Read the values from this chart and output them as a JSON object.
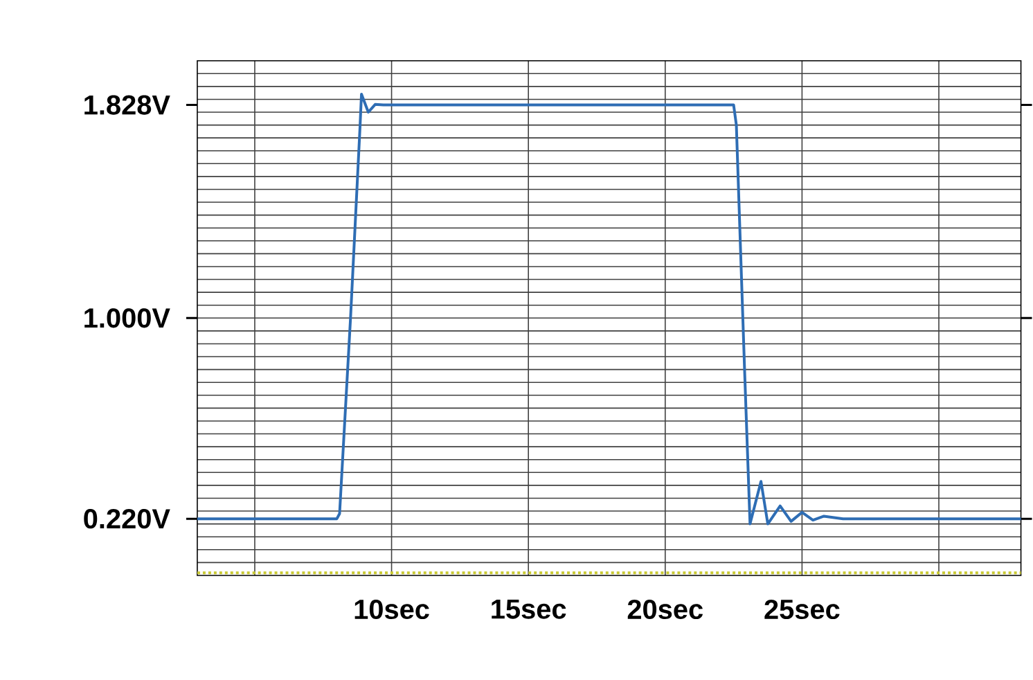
{
  "chart_data": {
    "type": "line",
    "xlim": [
      2.9,
      33
    ],
    "ylim": [
      0,
      2
    ],
    "grid": true,
    "xticks": [
      {
        "value": 5,
        "label": null
      },
      {
        "value": 10,
        "label": "10sec"
      },
      {
        "value": 15,
        "label": "15sec"
      },
      {
        "value": 20,
        "label": "20sec"
      },
      {
        "value": 25,
        "label": "25sec"
      },
      {
        "value": 30,
        "label": null
      }
    ],
    "yticks": [
      {
        "value": 0.05,
        "label": null
      },
      {
        "value": 0.1,
        "label": null
      },
      {
        "value": 0.15,
        "label": null
      },
      {
        "value": 0.2,
        "label": null
      },
      {
        "value": 0.25,
        "label": null
      },
      {
        "value": 0.3,
        "label": null
      },
      {
        "value": 0.35,
        "label": null
      },
      {
        "value": 0.4,
        "label": null
      },
      {
        "value": 0.45,
        "label": null
      },
      {
        "value": 0.5,
        "label": null
      },
      {
        "value": 0.55,
        "label": null
      },
      {
        "value": 0.6,
        "label": null
      },
      {
        "value": 0.65,
        "label": null
      },
      {
        "value": 0.7,
        "label": null
      },
      {
        "value": 0.75,
        "label": null
      },
      {
        "value": 0.8,
        "label": null
      },
      {
        "value": 0.85,
        "label": null
      },
      {
        "value": 0.9,
        "label": null
      },
      {
        "value": 0.95,
        "label": null
      },
      {
        "value": 1.0,
        "label": null
      },
      {
        "value": 1.05,
        "label": null
      },
      {
        "value": 1.1,
        "label": null
      },
      {
        "value": 1.15,
        "label": null
      },
      {
        "value": 1.2,
        "label": null
      },
      {
        "value": 1.25,
        "label": null
      },
      {
        "value": 1.3,
        "label": null
      },
      {
        "value": 1.35,
        "label": null
      },
      {
        "value": 1.4,
        "label": null
      },
      {
        "value": 1.45,
        "label": null
      },
      {
        "value": 1.5,
        "label": null
      },
      {
        "value": 1.55,
        "label": null
      },
      {
        "value": 1.6,
        "label": null
      },
      {
        "value": 1.65,
        "label": null
      },
      {
        "value": 1.7,
        "label": null
      },
      {
        "value": 1.75,
        "label": null
      },
      {
        "value": 1.8,
        "label": null
      },
      {
        "value": 1.85,
        "label": null
      },
      {
        "value": 1.9,
        "label": null
      },
      {
        "value": 1.95,
        "label": null
      },
      {
        "value": 1.828,
        "label": "1.828V"
      },
      {
        "value": 1.0,
        "label": "1.000V"
      },
      {
        "value": 0.22,
        "label": "0.220V"
      }
    ],
    "series": [
      {
        "color": "#2e6db4",
        "line_style": "solid",
        "x": [
          2.9,
          8.0,
          8.1,
          8.5,
          8.85,
          8.9,
          9.15,
          9.4,
          9.7,
          22.5,
          22.6,
          22.9,
          23.1,
          23.5,
          23.75,
          24.2,
          24.6,
          25.0,
          25.4,
          25.8,
          26.5,
          33
        ],
        "values": [
          0.22,
          0.22,
          0.24,
          1.0,
          1.75,
          1.87,
          1.8,
          1.83,
          1.828,
          1.828,
          1.75,
          0.8,
          0.2,
          0.365,
          0.2,
          0.27,
          0.21,
          0.245,
          0.215,
          0.23,
          0.22,
          0.22
        ]
      },
      {
        "color": "#c8c832",
        "line_style": "dotted",
        "x": [
          2.9,
          33
        ],
        "values": [
          0.01,
          0.01
        ]
      }
    ]
  }
}
